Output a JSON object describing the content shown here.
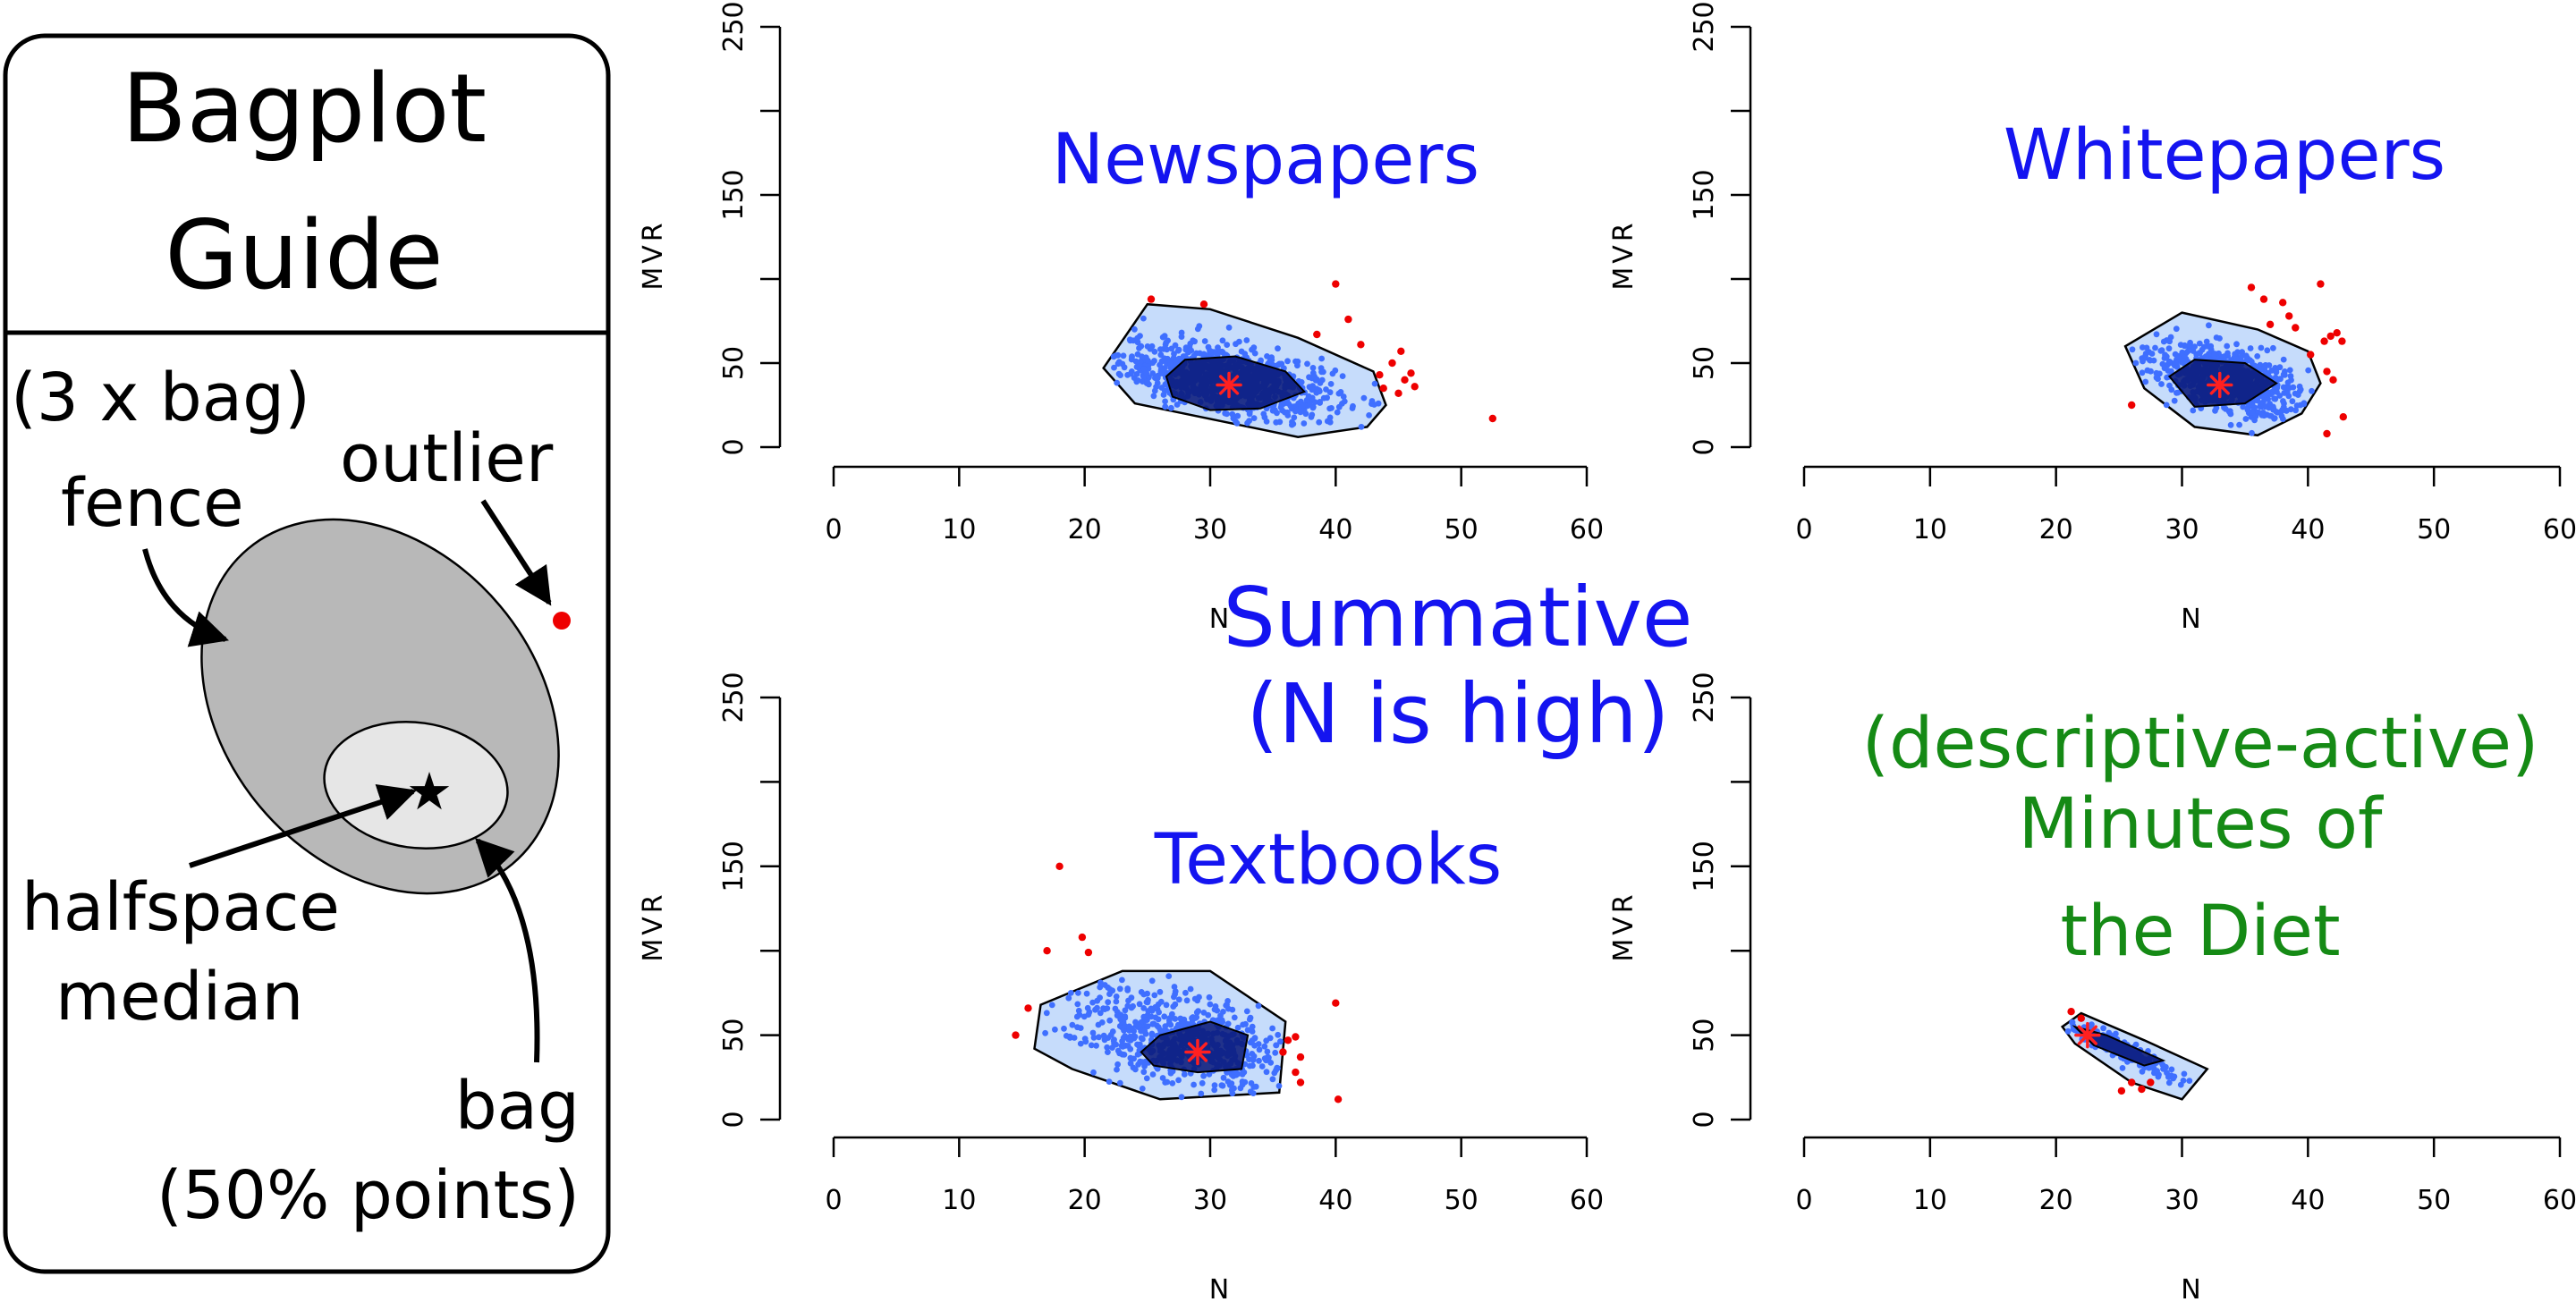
{
  "guide": {
    "title_line1": "Bagplot",
    "title_line2": "Guide",
    "fence_label_line1": "(3 x bag)",
    "fence_label_line2": "fence",
    "outlier_label": "outlier",
    "median_label_line1": "halfspace",
    "median_label_line2": "median",
    "bag_label_line1": "bag",
    "bag_label_line2": "(50% points)"
  },
  "overlay": {
    "summative_line1": "Summative",
    "summative_line2": "(N is high)",
    "descriptive_line1": "(descriptive-active)",
    "descriptive_line2": "Minutes of",
    "descriptive_line3": "the Diet"
  },
  "colors": {
    "fence_fill": "#c6dcfb",
    "bag_fill": "#0a1a7a",
    "points": "#3f6fff",
    "outliers": "#ee0000",
    "median": "#ff2020",
    "title_blue": "#1414f0",
    "title_green": "#158a15",
    "guide_fence": "#b8b8b8",
    "guide_bag": "#e6e6e6"
  },
  "chart_data": [
    {
      "type": "scatter",
      "subtype": "bagplot",
      "title": "Newspapers",
      "xlabel": "N",
      "ylabel": "MVR",
      "xlim": [
        0,
        60
      ],
      "ylim": [
        0,
        250
      ],
      "xticks": [
        0,
        10,
        20,
        30,
        40,
        50,
        60
      ],
      "yticks": [
        0,
        50,
        150,
        250
      ],
      "median": [
        31.5,
        37
      ],
      "fence": [
        [
          21.5,
          47
        ],
        [
          25,
          85
        ],
        [
          30,
          82
        ],
        [
          37,
          65
        ],
        [
          43,
          45
        ],
        [
          44,
          25
        ],
        [
          42.5,
          12
        ],
        [
          37,
          6
        ],
        [
          24,
          26
        ]
      ],
      "bag": [
        [
          26.5,
          42
        ],
        [
          28,
          52
        ],
        [
          32,
          54
        ],
        [
          36,
          45
        ],
        [
          37.5,
          33
        ],
        [
          34,
          23
        ],
        [
          30,
          22
        ],
        [
          27,
          30
        ]
      ],
      "points": {
        "count": 900,
        "center": [
          31.5,
          40
        ],
        "sd": [
          4.3,
          11
        ],
        "corr": -0.45
      },
      "outliers": [
        [
          25.3,
          88
        ],
        [
          29.5,
          85
        ],
        [
          40,
          97
        ],
        [
          41,
          76
        ],
        [
          42,
          61
        ],
        [
          43.5,
          43
        ],
        [
          44.5,
          50
        ],
        [
          45.2,
          57
        ],
        [
          45.5,
          40
        ],
        [
          46,
          44
        ],
        [
          46.3,
          36
        ],
        [
          45,
          32
        ],
        [
          43.8,
          35
        ],
        [
          52.5,
          17
        ],
        [
          38.5,
          67
        ]
      ]
    },
    {
      "type": "scatter",
      "subtype": "bagplot",
      "title": "Whitepapers",
      "xlabel": "N",
      "ylabel": "MVR",
      "xlim": [
        0,
        60
      ],
      "ylim": [
        0,
        250
      ],
      "xticks": [
        0,
        10,
        20,
        30,
        40,
        50,
        60
      ],
      "yticks": [
        0,
        50,
        150,
        250
      ],
      "median": [
        33,
        37
      ],
      "fence": [
        [
          25.5,
          60
        ],
        [
          30,
          80
        ],
        [
          36,
          70
        ],
        [
          40,
          57
        ],
        [
          41,
          38
        ],
        [
          39.5,
          20
        ],
        [
          36,
          7
        ],
        [
          31,
          12
        ],
        [
          27,
          35
        ]
      ],
      "bag": [
        [
          29,
          42
        ],
        [
          31,
          52
        ],
        [
          35,
          50
        ],
        [
          37.5,
          38
        ],
        [
          35,
          26
        ],
        [
          31,
          24
        ]
      ],
      "points": {
        "count": 700,
        "center": [
          33.5,
          40
        ],
        "sd": [
          3,
          11
        ],
        "corr": -0.5
      },
      "outliers": [
        [
          26,
          25
        ],
        [
          35.5,
          95
        ],
        [
          36.5,
          88
        ],
        [
          37,
          73
        ],
        [
          38,
          86
        ],
        [
          38.5,
          78
        ],
        [
          39,
          71
        ],
        [
          41,
          97
        ],
        [
          41.3,
          63
        ],
        [
          41.8,
          66
        ],
        [
          42.3,
          68
        ],
        [
          42.7,
          63
        ],
        [
          41.5,
          45
        ],
        [
          42,
          40
        ],
        [
          42.8,
          18
        ],
        [
          41.5,
          8
        ],
        [
          40.2,
          55
        ]
      ]
    },
    {
      "type": "scatter",
      "subtype": "bagplot",
      "title": "Textbooks",
      "xlabel": "N",
      "ylabel": "MVR",
      "xlim": [
        0,
        60
      ],
      "ylim": [
        0,
        250
      ],
      "xticks": [
        0,
        10,
        20,
        30,
        40,
        50,
        60
      ],
      "yticks": [
        0,
        50,
        150,
        250
      ],
      "median": [
        29,
        40
      ],
      "fence": [
        [
          16.5,
          68
        ],
        [
          23,
          88
        ],
        [
          30,
          88
        ],
        [
          36,
          58
        ],
        [
          35.5,
          16
        ],
        [
          26,
          12
        ],
        [
          19,
          30
        ],
        [
          16,
          42
        ]
      ],
      "bag": [
        [
          24.5,
          40
        ],
        [
          26,
          50
        ],
        [
          30,
          58
        ],
        [
          33,
          50
        ],
        [
          32.5,
          30
        ],
        [
          29,
          28
        ],
        [
          25.5,
          32
        ]
      ],
      "points": {
        "count": 600,
        "center": [
          27.5,
          47
        ],
        "sd": [
          4.5,
          15
        ],
        "corr": -0.35
      },
      "outliers": [
        [
          14.5,
          50
        ],
        [
          15.5,
          66
        ],
        [
          17,
          100
        ],
        [
          18,
          150
        ],
        [
          19.8,
          108
        ],
        [
          20.3,
          99
        ],
        [
          35.8,
          40
        ],
        [
          36.2,
          47
        ],
        [
          36.8,
          49
        ],
        [
          37.2,
          37
        ],
        [
          36.8,
          28
        ],
        [
          37.2,
          22
        ],
        [
          40,
          69
        ],
        [
          40.2,
          12
        ]
      ]
    },
    {
      "type": "scatter",
      "subtype": "bagplot",
      "title": "",
      "xlabel": "N",
      "ylabel": "MVR",
      "xlim": [
        0,
        60
      ],
      "ylim": [
        0,
        250
      ],
      "xticks": [
        0,
        10,
        20,
        30,
        40,
        50,
        60
      ],
      "yticks": [
        0,
        50,
        150,
        250
      ],
      "median": [
        22.5,
        50
      ],
      "fence": [
        [
          20.5,
          55
        ],
        [
          22,
          63
        ],
        [
          27,
          47
        ],
        [
          32,
          30
        ],
        [
          30,
          12
        ],
        [
          26,
          22
        ],
        [
          21.5,
          45
        ]
      ],
      "bag": [
        [
          21.5,
          55
        ],
        [
          24,
          50
        ],
        [
          28.5,
          35
        ],
        [
          27,
          32
        ],
        [
          23,
          44
        ]
      ],
      "points": {
        "count": 180,
        "center": [
          25,
          42
        ],
        "sd": [
          2.6,
          10
        ],
        "corr": -0.95
      },
      "outliers": [
        [
          21.2,
          64
        ],
        [
          22,
          60
        ],
        [
          25.2,
          17
        ],
        [
          26,
          22
        ],
        [
          26.8,
          18
        ],
        [
          27.5,
          22
        ]
      ]
    }
  ]
}
